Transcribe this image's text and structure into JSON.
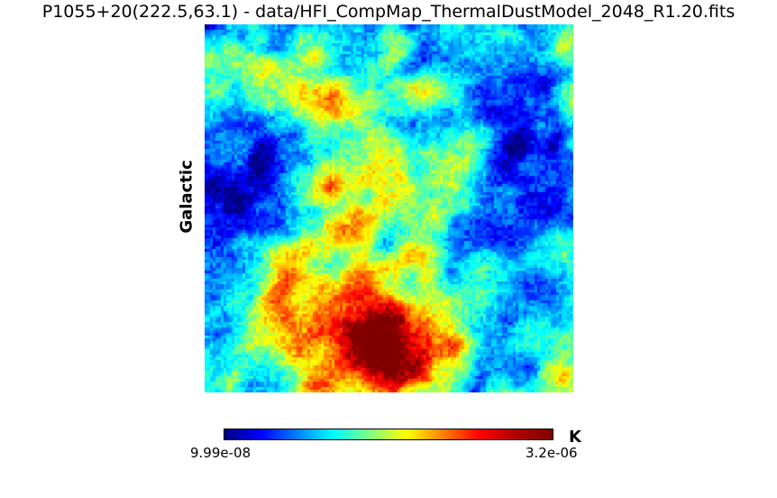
{
  "title": "P1055+20(222.5,63.1) - data/HFI_CompMap_ThermalDustModel_2048_R1.20.fits",
  "coord_system": "Galactic",
  "colorbar": {
    "colormap": "jet",
    "min_label": "9.99e-08",
    "max_label": "3.2e-06",
    "unit": "K",
    "colors": [
      "#000080",
      "#0000ff",
      "#0080ff",
      "#00ffff",
      "#80ff80",
      "#ffff00",
      "#ff8000",
      "#ff0000",
      "#b00000",
      "#800000"
    ]
  }
}
